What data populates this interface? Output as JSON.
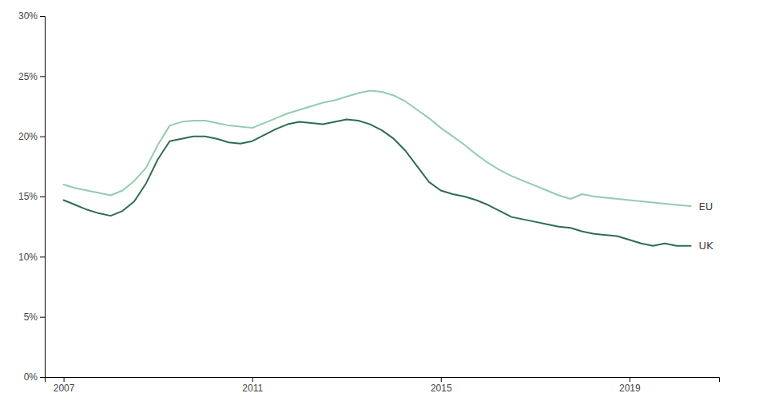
{
  "chart_data": {
    "type": "line",
    "x": [
      2007.0,
      2007.25,
      2007.5,
      2007.75,
      2008.0,
      2008.25,
      2008.5,
      2008.75,
      2009.0,
      2009.25,
      2009.5,
      2009.75,
      2010.0,
      2010.25,
      2010.5,
      2010.75,
      2011.0,
      2011.25,
      2011.5,
      2011.75,
      2012.0,
      2012.25,
      2012.5,
      2012.75,
      2013.0,
      2013.25,
      2013.5,
      2013.75,
      2014.0,
      2014.25,
      2014.5,
      2014.75,
      2015.0,
      2015.25,
      2015.5,
      2015.75,
      2016.0,
      2016.25,
      2016.5,
      2016.75,
      2017.0,
      2017.25,
      2017.5,
      2017.75,
      2018.0,
      2018.25,
      2018.5,
      2018.75,
      2019.0,
      2019.25,
      2019.5,
      2019.75,
      2020.0,
      2020.3
    ],
    "series": [
      {
        "name": "EU",
        "color": "#93ccaf",
        "values": [
          0.16,
          0.157,
          0.155,
          0.153,
          0.151,
          0.155,
          0.163,
          0.174,
          0.193,
          0.209,
          0.212,
          0.213,
          0.213,
          0.211,
          0.209,
          0.208,
          0.207,
          0.211,
          0.215,
          0.219,
          0.222,
          0.225,
          0.228,
          0.23,
          0.233,
          0.236,
          0.238,
          0.237,
          0.234,
          0.229,
          0.222,
          0.215,
          0.207,
          0.2,
          0.193,
          0.185,
          0.178,
          0.172,
          0.167,
          0.163,
          0.159,
          0.155,
          0.151,
          0.148,
          0.152,
          0.15,
          0.149,
          0.148,
          0.147,
          0.146,
          0.145,
          0.144,
          0.143,
          0.142
        ]
      },
      {
        "name": "UK",
        "color": "#2d6e4e",
        "values": [
          0.147,
          0.143,
          0.139,
          0.136,
          0.134,
          0.138,
          0.146,
          0.161,
          0.181,
          0.196,
          0.198,
          0.2,
          0.2,
          0.198,
          0.195,
          0.194,
          0.196,
          0.201,
          0.206,
          0.21,
          0.212,
          0.211,
          0.21,
          0.212,
          0.214,
          0.213,
          0.21,
          0.205,
          0.198,
          0.188,
          0.175,
          0.162,
          0.155,
          0.152,
          0.15,
          0.147,
          0.143,
          0.138,
          0.133,
          0.131,
          0.129,
          0.127,
          0.125,
          0.124,
          0.121,
          0.119,
          0.118,
          0.117,
          0.114,
          0.111,
          0.109,
          0.111,
          0.109,
          0.109
        ]
      }
    ],
    "xlim": [
      2006.6,
      2020.9
    ],
    "xticks": [
      2007,
      2011,
      2015,
      2019
    ],
    "ylim": [
      0,
      0.3
    ],
    "yticks": [
      {
        "value": 0.0,
        "label": "0%"
      },
      {
        "value": 0.05,
        "label": "5%"
      },
      {
        "value": 0.1,
        "label": "10%"
      },
      {
        "value": 0.15,
        "label": "15%"
      },
      {
        "value": 0.2,
        "label": "20%"
      },
      {
        "value": 0.25,
        "label": "25%"
      },
      {
        "value": 0.3,
        "label": "30%"
      }
    ],
    "grid": false
  }
}
